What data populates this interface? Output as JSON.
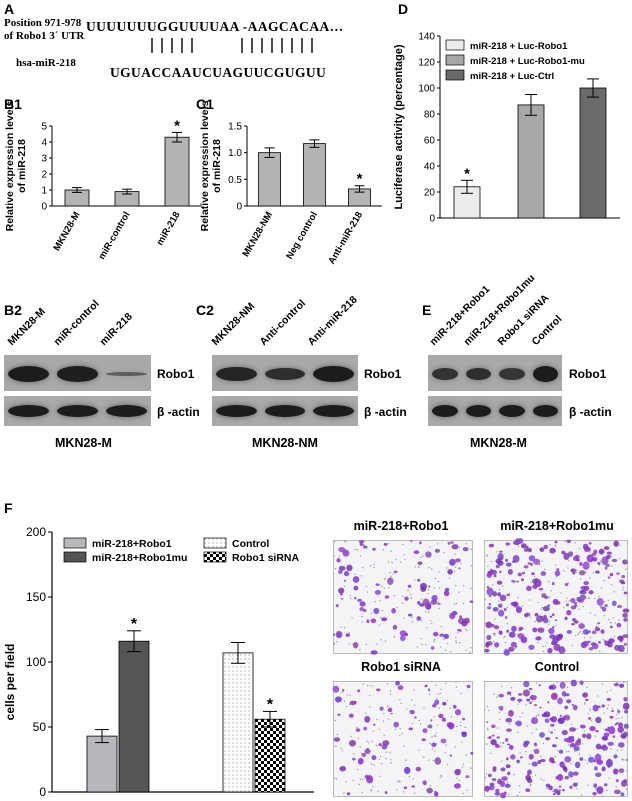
{
  "panel_a": {
    "letter": "A",
    "target_label_line1": "Position 971-978",
    "target_label_line2": "of Robo1 3´ UTR",
    "target_seq": "UUUUUUUGGUUUUAA -AAGCACAA…",
    "mirna_label": "hsa-miR-218",
    "mirna_seq": "UGUACCAAUCUAGUUCGUGUU"
  },
  "panel_b1": {
    "letter": "B1"
  },
  "panel_c1": {
    "letter": "C1"
  },
  "panel_d": {
    "letter": "D"
  },
  "panel_b2": {
    "letter": "B2",
    "lanes": [
      "MKN28-M",
      "miR-control",
      "miR-218"
    ],
    "bands": [
      "Robo1",
      "β -actin"
    ],
    "cell_line": "MKN28-M",
    "robo1_intensity": [
      1.0,
      0.95,
      0.25
    ],
    "actin_intensity": [
      1.0,
      1.0,
      1.0
    ]
  },
  "panel_c2": {
    "letter": "C2",
    "lanes": [
      "MKN28-NM",
      "Anti-control",
      "Anti-miR-218"
    ],
    "bands": [
      "Robo1",
      "β -actin"
    ],
    "cell_line": "MKN28-NM",
    "robo1_intensity": [
      0.9,
      0.8,
      1.0
    ],
    "actin_intensity": [
      1.0,
      1.0,
      1.0
    ]
  },
  "panel_e": {
    "letter": "E",
    "lanes": [
      "miR-218+Robo1",
      "miR-218+Robo1mu",
      "Robo1 siRNA",
      "Control"
    ],
    "bands": [
      "Robo1",
      "β -actin"
    ],
    "cell_line": "MKN28-M",
    "robo1_intensity": [
      0.75,
      0.8,
      0.7,
      1.0
    ],
    "actin_intensity": [
      1.0,
      1.0,
      1.0,
      1.0
    ]
  },
  "panel_f": {
    "letter": "F",
    "micrographs": [
      "miR-218+Robo1",
      "miR-218+Robo1mu",
      "Robo1 siRNA",
      "Control"
    ]
  },
  "chart_data": [
    {
      "id": "B1",
      "type": "bar",
      "categories": [
        "MKN28-M",
        "miR-control",
        "miR-218"
      ],
      "values": [
        1.0,
        0.9,
        4.3
      ],
      "errors": [
        0.15,
        0.15,
        0.3
      ],
      "significant": [
        false,
        false,
        true
      ],
      "ylabel": "Relative expression levels of miR-218",
      "ylim": [
        0,
        5
      ],
      "yticks": [
        "0",
        "1",
        "2",
        "3",
        "4",
        "5"
      ],
      "bar_color": "#b4b4b4"
    },
    {
      "id": "C1",
      "type": "bar",
      "categories": [
        "MKN28-NM",
        "Neg control",
        "Anti-miR-218"
      ],
      "values": [
        1.0,
        1.17,
        0.32
      ],
      "errors": [
        0.09,
        0.07,
        0.06
      ],
      "significant": [
        false,
        false,
        true
      ],
      "ylabel": "Relative expression levels of miR-218",
      "ylim": [
        0,
        1.5
      ],
      "yticks": [
        "0",
        "0.5",
        "1.0",
        "1.5"
      ],
      "bar_color": "#b4b4b4"
    },
    {
      "id": "D",
      "type": "bar",
      "categories": [
        "miR-218 + Luc-Robo1",
        "miR-218 + Luc-Robo1-mu",
        "miR-218 + Luc-Ctrl"
      ],
      "values": [
        24,
        87,
        100
      ],
      "errors": [
        5,
        8,
        7
      ],
      "significant": [
        true,
        false,
        false
      ],
      "ylabel": "Luciferase activity (percentage)",
      "ylim": [
        0,
        140
      ],
      "yticks": [
        "0",
        "20",
        "40",
        "60",
        "80",
        "100",
        "120",
        "140"
      ],
      "colors": [
        "#ececec",
        "#a8a8a8",
        "#6a6a6a"
      ],
      "legend": [
        "miR-218 + Luc-Robo1",
        "miR-218 + Luc-Robo1-mu",
        "miR-218 + Luc-Ctrl"
      ],
      "legend_position": "top-left"
    },
    {
      "id": "F",
      "type": "bar",
      "categories": [
        "miR-218+Robo1",
        "miR-218+Robo1mu",
        "Control",
        "Robo1 siRNA"
      ],
      "values": [
        43,
        116,
        107,
        56
      ],
      "errors": [
        5,
        8,
        8,
        6
      ],
      "significant": [
        false,
        true,
        false,
        true
      ],
      "ylabel": "cells per field",
      "ylim": [
        0,
        200
      ],
      "yticks": [
        "0",
        "50",
        "100",
        "150",
        "200"
      ],
      "legend": [
        "miR-218+Robo1",
        "Control",
        "miR-218+Robo1mu",
        "Robo1 siRNA"
      ],
      "legend_position": "top"
    }
  ]
}
